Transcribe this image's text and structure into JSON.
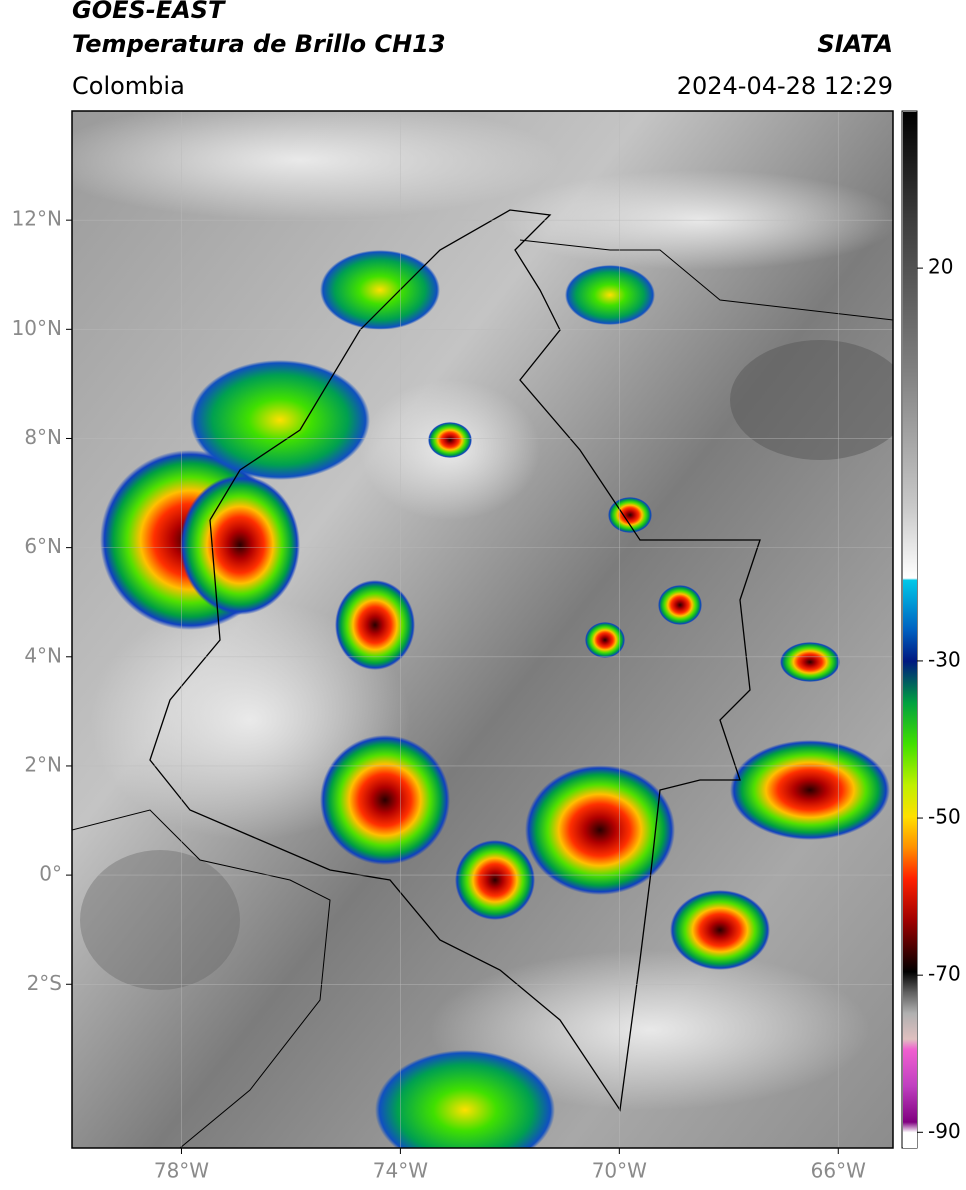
{
  "header": {
    "title": "GOES-EAST",
    "subtitle": "Temperatura de Brillo CH13",
    "region": "Colombia",
    "source": "SIATA",
    "datetime": "2024-04-28 12:29"
  },
  "map": {
    "lonlim": [
      -80,
      -65
    ],
    "latlim": [
      -5,
      14
    ],
    "lonticks": [
      {
        "value": -78,
        "label": "78°W"
      },
      {
        "value": -74,
        "label": "74°W"
      },
      {
        "value": -70,
        "label": "70°W"
      },
      {
        "value": -66,
        "label": "66°W"
      }
    ],
    "latticks": [
      {
        "value": 12,
        "label": "12°N"
      },
      {
        "value": 10,
        "label": "10°N"
      },
      {
        "value": 8,
        "label": "8°N"
      },
      {
        "value": 6,
        "label": "6°N"
      },
      {
        "value": 4,
        "label": "4°N"
      },
      {
        "value": 2,
        "label": "2°N"
      },
      {
        "value": 0,
        "label": "0°"
      },
      {
        "value": -2,
        "label": "2°S"
      }
    ],
    "grid": true
  },
  "colorbar": {
    "lim": [
      -92,
      40
    ],
    "ticks": [
      20,
      -30,
      -50,
      -70,
      -90
    ]
  }
}
